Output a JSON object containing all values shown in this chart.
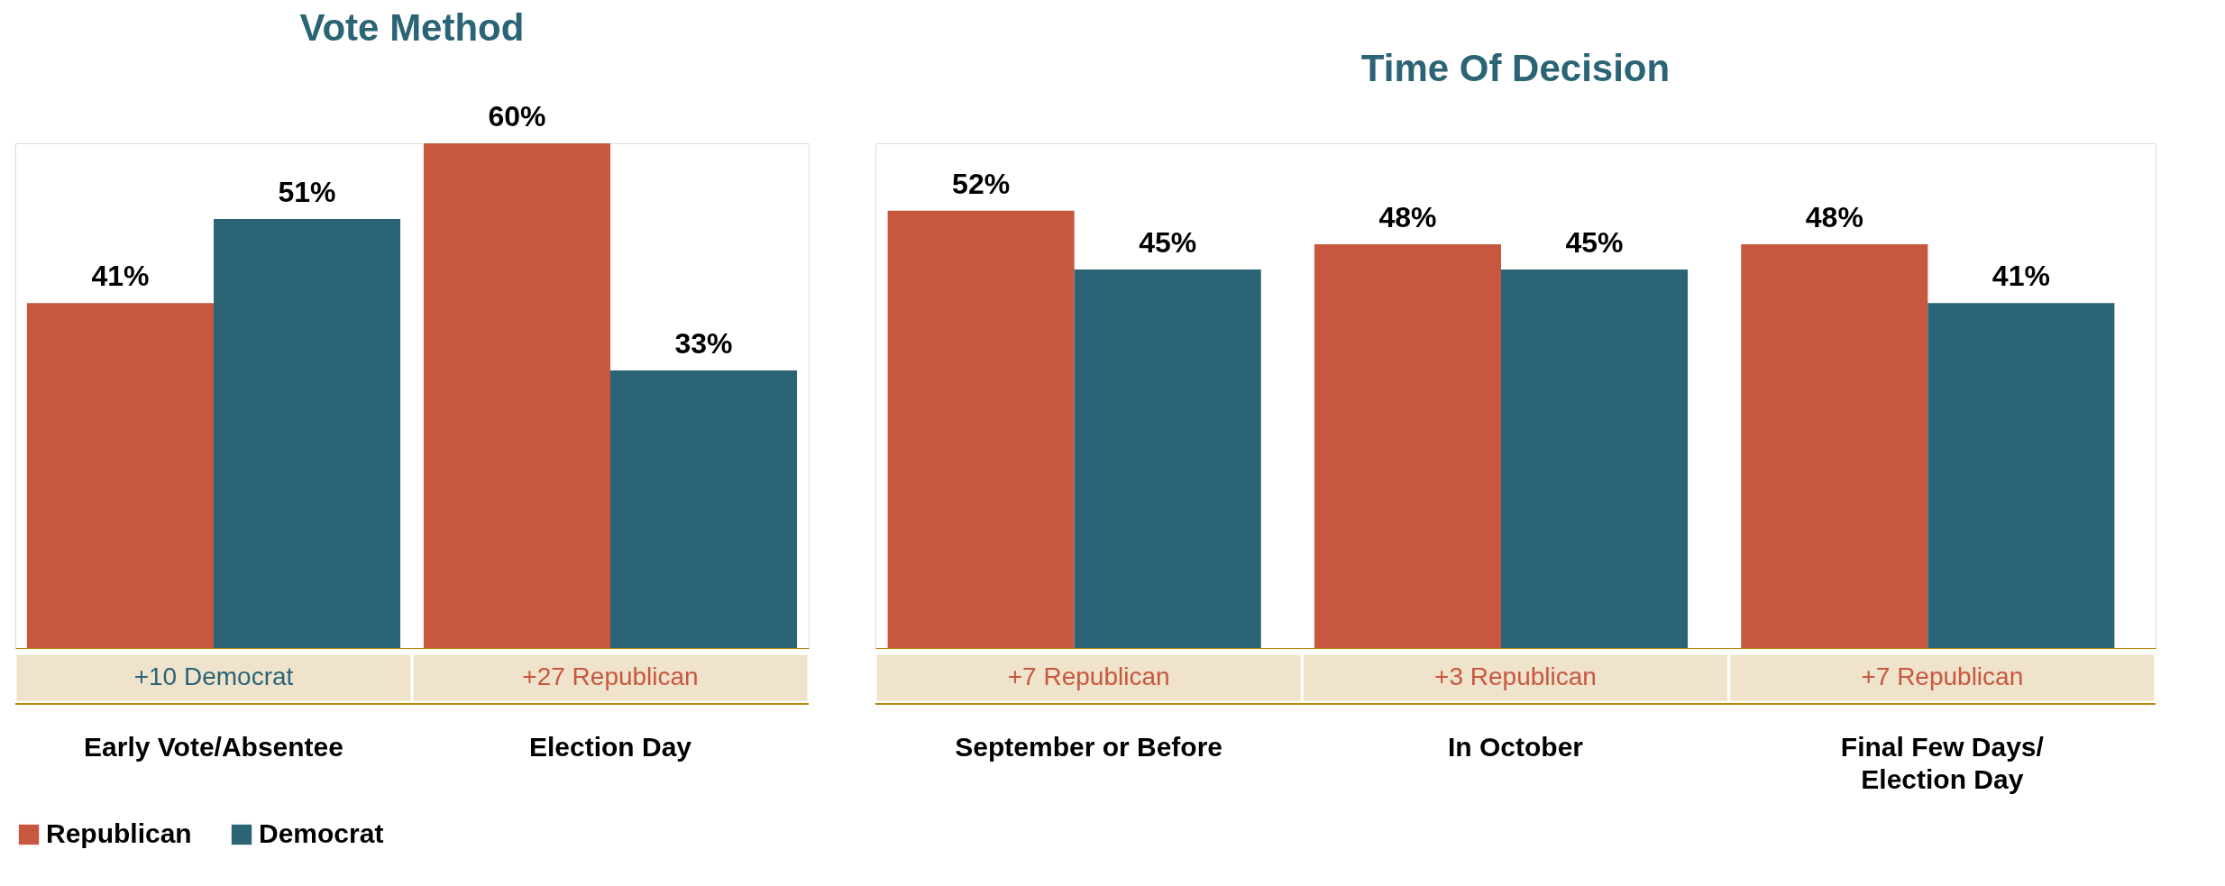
{
  "chart_data": [
    {
      "type": "bar",
      "title": "Vote Method",
      "categories": [
        "Early Vote/Absentee",
        "Election Day"
      ],
      "series": [
        {
          "name": "Republican",
          "color": "#c8573f",
          "values": [
            41,
            60
          ],
          "value_labels": [
            "41%",
            "60%"
          ]
        },
        {
          "name": "Democrat",
          "color": "#2a6475",
          "values": [
            51,
            33
          ],
          "value_labels": [
            "51%",
            "33%"
          ]
        }
      ],
      "legend": "bottom",
      "annotations": [
        "+10 Democrat",
        "+27 Republican"
      ]
    },
    {
      "type": "bar",
      "title": "Time Of Decision",
      "categories": [
        "September or Before",
        "In October",
        "Final Few Days/\nElection Day"
      ],
      "series": [
        {
          "name": "Republican",
          "color": "#c8573f",
          "values": [
            52,
            48,
            48
          ],
          "value_labels": [
            "52%",
            "48%",
            "48%"
          ]
        },
        {
          "name": "Democrat",
          "color": "#2a6475",
          "values": [
            45,
            45,
            41
          ],
          "value_labels": [
            "45%",
            "45%",
            "41%"
          ]
        }
      ],
      "legend": "bottom",
      "annotations": [
        "+7 Republican",
        "+3 Republican",
        "+7 Republican"
      ]
    }
  ]
}
